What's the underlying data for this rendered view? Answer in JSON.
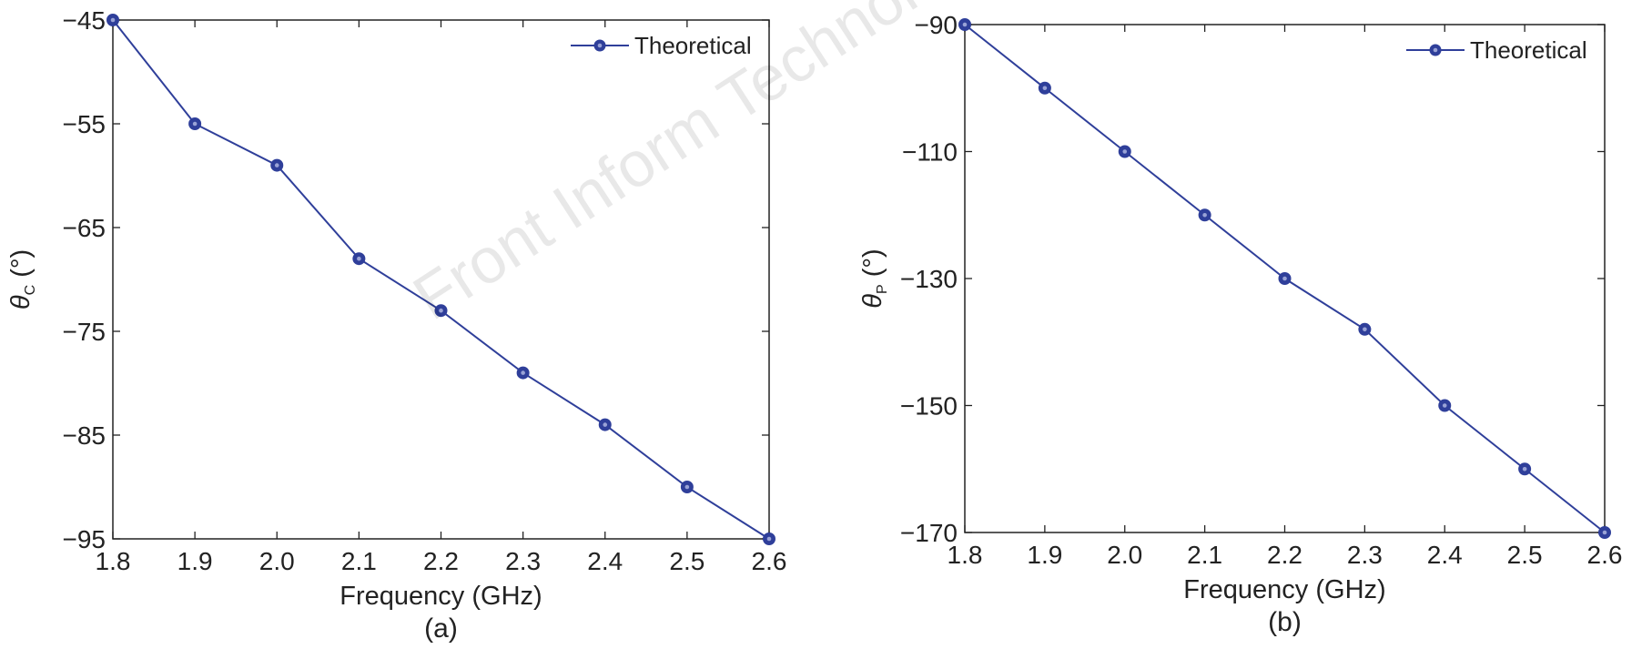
{
  "watermark": "Front Inform Technol Electron Eng",
  "colors": {
    "series": "#2f3f9a",
    "axis": "#222222"
  },
  "chart_data": [
    {
      "type": "line",
      "xlabel": "Frequency (GHz)",
      "ylabel_symbol": "θ",
      "ylabel_sub": "C",
      "ylabel_unit": " (°)",
      "panel_label": "(a)",
      "xlim": [
        1.8,
        2.6
      ],
      "ylim": [
        -95,
        -45
      ],
      "xticks": [
        "1.8",
        "1.9",
        "2.0",
        "2.1",
        "2.2",
        "2.3",
        "2.4",
        "2.5",
        "2.6"
      ],
      "yticks": [
        "-45",
        "-55",
        "-65",
        "-75",
        "-85",
        "-95"
      ],
      "legend_position": "top-right",
      "series": [
        {
          "name": "Theoretical",
          "x": [
            1.8,
            1.9,
            2.0,
            2.1,
            2.2,
            2.3,
            2.4,
            2.5,
            2.6
          ],
          "y": [
            -45,
            -55,
            -59,
            -68,
            -73,
            -79,
            -84,
            -90,
            -95
          ]
        }
      ]
    },
    {
      "type": "line",
      "xlabel": "Frequency (GHz)",
      "ylabel_symbol": "θ",
      "ylabel_sub": "P",
      "ylabel_unit": " (°)",
      "panel_label": "(b)",
      "xlim": [
        1.8,
        2.6
      ],
      "ylim": [
        -170,
        -90
      ],
      "xticks": [
        "1.8",
        "1.9",
        "2.0",
        "2.1",
        "2.2",
        "2.3",
        "2.4",
        "2.5",
        "2.6"
      ],
      "yticks": [
        "-90",
        "-110",
        "-130",
        "-150",
        "-170"
      ],
      "legend_position": "top-right",
      "series": [
        {
          "name": "Theoretical",
          "x": [
            1.8,
            1.9,
            2.0,
            2.1,
            2.2,
            2.3,
            2.4,
            2.5,
            2.6
          ],
          "y": [
            -90,
            -100,
            -110,
            -120,
            -130,
            -138,
            -150,
            -160,
            -170
          ]
        }
      ]
    }
  ]
}
